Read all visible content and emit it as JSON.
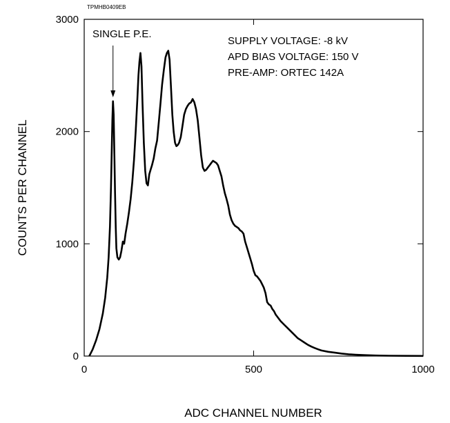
{
  "figure_code": "TPMHB0409EB",
  "chart_data": {
    "type": "line",
    "xlabel": "ADC CHANNEL NUMBER",
    "ylabel": "COUNTS PER CHANNEL",
    "xlim": [
      0,
      1000
    ],
    "ylim": [
      0,
      3000
    ],
    "x_ticks": [
      0,
      500,
      1000
    ],
    "y_ticks": [
      0,
      1000,
      2000,
      3000
    ],
    "grid": false,
    "annotations": {
      "peak_label": "SINGLE P.E.",
      "peak_x": 85,
      "conditions": [
        "SUPPLY VOLTAGE: -8 kV",
        "APD BIAS VOLTAGE: 150 V",
        "PRE-AMP: ORTEC 142A"
      ]
    },
    "series": [
      {
        "color": "#000000",
        "points": [
          [
            15,
            0
          ],
          [
            25,
            60
          ],
          [
            35,
            140
          ],
          [
            45,
            240
          ],
          [
            55,
            380
          ],
          [
            62,
            520
          ],
          [
            68,
            700
          ],
          [
            72,
            880
          ],
          [
            76,
            1150
          ],
          [
            79,
            1500
          ],
          [
            81,
            1800
          ],
          [
            83,
            2100
          ],
          [
            85,
            2270
          ],
          [
            87,
            2150
          ],
          [
            89,
            1800
          ],
          [
            91,
            1450
          ],
          [
            93,
            1150
          ],
          [
            95,
            960
          ],
          [
            98,
            880
          ],
          [
            102,
            860
          ],
          [
            106,
            880
          ],
          [
            110,
            940
          ],
          [
            114,
            1020
          ],
          [
            118,
            1000
          ],
          [
            122,
            1090
          ],
          [
            127,
            1180
          ],
          [
            132,
            1280
          ],
          [
            137,
            1400
          ],
          [
            142,
            1550
          ],
          [
            147,
            1750
          ],
          [
            152,
            2000
          ],
          [
            157,
            2300
          ],
          [
            160,
            2500
          ],
          [
            163,
            2620
          ],
          [
            166,
            2700
          ],
          [
            169,
            2580
          ],
          [
            172,
            2250
          ],
          [
            176,
            1900
          ],
          [
            180,
            1650
          ],
          [
            184,
            1540
          ],
          [
            188,
            1520
          ],
          [
            192,
            1620
          ],
          [
            196,
            1660
          ],
          [
            200,
            1700
          ],
          [
            205,
            1760
          ],
          [
            210,
            1850
          ],
          [
            215,
            1920
          ],
          [
            220,
            2080
          ],
          [
            225,
            2250
          ],
          [
            230,
            2420
          ],
          [
            235,
            2550
          ],
          [
            240,
            2660
          ],
          [
            244,
            2700
          ],
          [
            248,
            2720
          ],
          [
            252,
            2640
          ],
          [
            256,
            2400
          ],
          [
            260,
            2150
          ],
          [
            264,
            2000
          ],
          [
            268,
            1900
          ],
          [
            272,
            1870
          ],
          [
            276,
            1880
          ],
          [
            280,
            1900
          ],
          [
            285,
            1950
          ],
          [
            290,
            2050
          ],
          [
            295,
            2150
          ],
          [
            300,
            2200
          ],
          [
            305,
            2230
          ],
          [
            310,
            2250
          ],
          [
            315,
            2260
          ],
          [
            320,
            2290
          ],
          [
            325,
            2260
          ],
          [
            330,
            2200
          ],
          [
            335,
            2100
          ],
          [
            340,
            1950
          ],
          [
            345,
            1790
          ],
          [
            350,
            1680
          ],
          [
            355,
            1650
          ],
          [
            360,
            1660
          ],
          [
            365,
            1680
          ],
          [
            370,
            1700
          ],
          [
            375,
            1720
          ],
          [
            380,
            1740
          ],
          [
            385,
            1730
          ],
          [
            390,
            1720
          ],
          [
            395,
            1700
          ],
          [
            400,
            1650
          ],
          [
            405,
            1600
          ],
          [
            410,
            1520
          ],
          [
            415,
            1450
          ],
          [
            420,
            1400
          ],
          [
            425,
            1340
          ],
          [
            430,
            1260
          ],
          [
            435,
            1210
          ],
          [
            440,
            1180
          ],
          [
            445,
            1160
          ],
          [
            450,
            1150
          ],
          [
            455,
            1140
          ],
          [
            460,
            1120
          ],
          [
            465,
            1110
          ],
          [
            470,
            1090
          ],
          [
            475,
            1020
          ],
          [
            480,
            970
          ],
          [
            485,
            920
          ],
          [
            490,
            870
          ],
          [
            495,
            820
          ],
          [
            500,
            760
          ],
          [
            505,
            720
          ],
          [
            510,
            710
          ],
          [
            515,
            690
          ],
          [
            520,
            670
          ],
          [
            525,
            640
          ],
          [
            530,
            610
          ],
          [
            535,
            560
          ],
          [
            540,
            480
          ],
          [
            545,
            460
          ],
          [
            550,
            450
          ],
          [
            555,
            420
          ],
          [
            560,
            400
          ],
          [
            565,
            370
          ],
          [
            570,
            350
          ],
          [
            575,
            330
          ],
          [
            580,
            310
          ],
          [
            590,
            280
          ],
          [
            600,
            250
          ],
          [
            610,
            220
          ],
          [
            620,
            190
          ],
          [
            630,
            160
          ],
          [
            640,
            140
          ],
          [
            650,
            120
          ],
          [
            660,
            100
          ],
          [
            670,
            85
          ],
          [
            680,
            72
          ],
          [
            690,
            60
          ],
          [
            700,
            50
          ],
          [
            720,
            38
          ],
          [
            740,
            30
          ],
          [
            760,
            22
          ],
          [
            780,
            16
          ],
          [
            800,
            12
          ],
          [
            830,
            8
          ],
          [
            860,
            5
          ],
          [
            900,
            3
          ],
          [
            950,
            2
          ],
          [
            1000,
            1
          ]
        ]
      }
    ]
  }
}
